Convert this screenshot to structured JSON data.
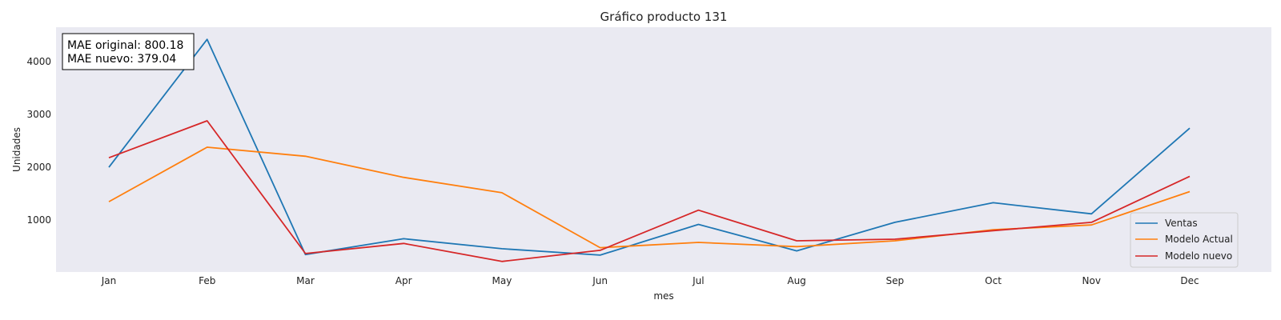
{
  "chart_data": {
    "type": "line",
    "title": "Gráfico producto 131",
    "xlabel": "mes",
    "ylabel": "Unidades",
    "categories": [
      "Jan",
      "Feb",
      "Mar",
      "Apr",
      "May",
      "Jun",
      "Jul",
      "Aug",
      "Sep",
      "Oct",
      "Nov",
      "Dec"
    ],
    "ylim": [
      20,
      4650
    ],
    "yticks": [
      1000,
      2000,
      3000,
      4000
    ],
    "grid": false,
    "legend_position": "bottom-right",
    "series": [
      {
        "name": "Ventas",
        "color": "#1f77b4",
        "values": [
          2000,
          4420,
          350,
          650,
          460,
          340,
          920,
          420,
          960,
          1330,
          1120,
          2740
        ]
      },
      {
        "name": "Modelo Actual",
        "color": "#ff7f0e",
        "values": [
          1350,
          2380,
          2210,
          1810,
          1520,
          480,
          580,
          500,
          610,
          820,
          910,
          1540
        ]
      },
      {
        "name": "Modelo nuevo",
        "color": "#d62728",
        "values": [
          2180,
          2880,
          370,
          560,
          220,
          430,
          1190,
          610,
          640,
          800,
          960,
          1830
        ]
      }
    ],
    "annotation": {
      "lines": [
        "MAE original: 800.18",
        "MAE nuevo: 379.04"
      ]
    }
  }
}
